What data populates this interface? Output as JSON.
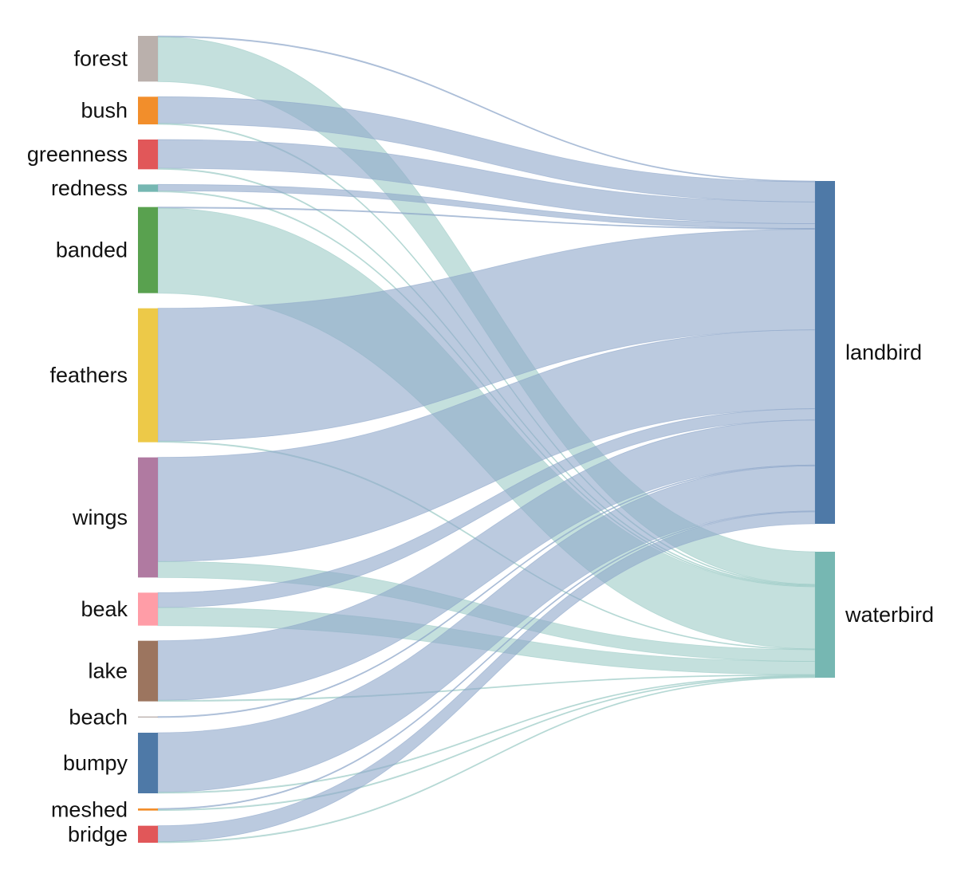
{
  "diagram": {
    "type": "sankey",
    "source_nodes": [
      {
        "id": "forest",
        "label": "forest",
        "color": "#bab0ac"
      },
      {
        "id": "bush",
        "label": "bush",
        "color": "#f28e2b"
      },
      {
        "id": "greenness",
        "label": "greenness",
        "color": "#e15759"
      },
      {
        "id": "redness",
        "label": "redness",
        "color": "#76b7b2"
      },
      {
        "id": "banded",
        "label": "banded",
        "color": "#59a14f"
      },
      {
        "id": "feathers",
        "label": "feathers",
        "color": "#edc948"
      },
      {
        "id": "wings",
        "label": "wings",
        "color": "#b07aa1"
      },
      {
        "id": "beak",
        "label": "beak",
        "color": "#ff9da7"
      },
      {
        "id": "lake",
        "label": "lake",
        "color": "#9c755f"
      },
      {
        "id": "beach",
        "label": "beach",
        "color": "#bab0ac"
      },
      {
        "id": "bumpy",
        "label": "bumpy",
        "color": "#4e79a7"
      },
      {
        "id": "meshed",
        "label": "meshed",
        "color": "#f28e2b"
      },
      {
        "id": "bridge",
        "label": "bridge",
        "color": "#e15759"
      }
    ],
    "target_nodes": [
      {
        "id": "landbird",
        "label": "landbird",
        "color": "#4e79a7",
        "link_color": "#8ea6c9"
      },
      {
        "id": "waterbird",
        "label": "waterbird",
        "color": "#76b7b2",
        "link_color": "#9ccbc6"
      }
    ],
    "links": [
      {
        "source": "forest",
        "target": "landbird",
        "value": 1
      },
      {
        "source": "forest",
        "target": "waterbird",
        "value": 42
      },
      {
        "source": "bush",
        "target": "landbird",
        "value": 25
      },
      {
        "source": "bush",
        "target": "waterbird",
        "value": 1
      },
      {
        "source": "greenness",
        "target": "landbird",
        "value": 27
      },
      {
        "source": "greenness",
        "target": "waterbird",
        "value": 1
      },
      {
        "source": "redness",
        "target": "landbird",
        "value": 6
      },
      {
        "source": "redness",
        "target": "waterbird",
        "value": 1
      },
      {
        "source": "banded",
        "target": "landbird",
        "value": 1
      },
      {
        "source": "banded",
        "target": "waterbird",
        "value": 80
      },
      {
        "source": "feathers",
        "target": "landbird",
        "value": 125
      },
      {
        "source": "feathers",
        "target": "waterbird",
        "value": 1
      },
      {
        "source": "wings",
        "target": "landbird",
        "value": 98
      },
      {
        "source": "wings",
        "target": "waterbird",
        "value": 15
      },
      {
        "source": "beak",
        "target": "landbird",
        "value": 14
      },
      {
        "source": "beak",
        "target": "waterbird",
        "value": 17
      },
      {
        "source": "lake",
        "target": "landbird",
        "value": 56
      },
      {
        "source": "lake",
        "target": "waterbird",
        "value": 1
      },
      {
        "source": "beach",
        "target": "landbird",
        "value": 1
      },
      {
        "source": "bumpy",
        "target": "landbird",
        "value": 56
      },
      {
        "source": "bumpy",
        "target": "waterbird",
        "value": 1
      },
      {
        "source": "meshed",
        "target": "landbird",
        "value": 1
      },
      {
        "source": "meshed",
        "target": "waterbird",
        "value": 1
      },
      {
        "source": "bridge",
        "target": "landbird",
        "value": 15
      },
      {
        "source": "bridge",
        "target": "waterbird",
        "value": 1
      }
    ]
  }
}
